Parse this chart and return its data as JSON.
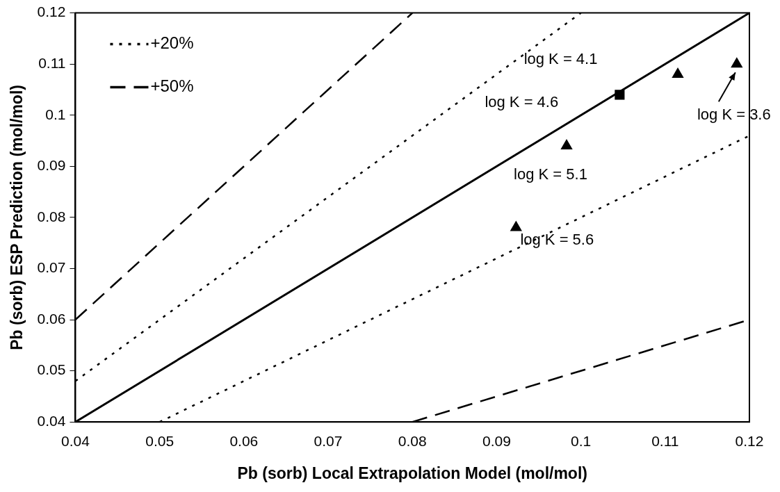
{
  "chart_data": {
    "type": "scatter",
    "xlabel": "Pb (sorb) Local Extrapolation Model (mol/mol)",
    "ylabel": "Pb (sorb) ESP Prediction (mol/mol)",
    "xlim": [
      0.04,
      0.12
    ],
    "ylim": [
      0.04,
      0.12
    ],
    "xticks": [
      0.04,
      0.05,
      0.06,
      0.07,
      0.08,
      0.09,
      0.1,
      0.11,
      0.12
    ],
    "yticks": [
      0.04,
      0.05,
      0.06,
      0.07,
      0.08,
      0.09,
      0.1,
      0.11,
      0.12
    ],
    "grid": false,
    "legend": "top left",
    "series": [
      {
        "type": "line",
        "color": "#000000",
        "line_style": "solid",
        "marker": "none",
        "x": [
          0.04,
          0.12
        ],
        "values": [
          0.04,
          0.12
        ]
      },
      {
        "type": "line",
        "name": "+20%",
        "color": "#000000",
        "line_style": "dotted",
        "marker": "none",
        "x": [
          0.04,
          0.1
        ],
        "values": [
          0.048,
          0.12
        ]
      },
      {
        "type": "line",
        "color": "#000000",
        "line_style": "dotted",
        "marker": "none",
        "x": [
          0.05,
          0.12
        ],
        "values": [
          0.04,
          0.096
        ]
      },
      {
        "type": "line",
        "name": "+50%",
        "color": "#000000",
        "line_style": "dashed",
        "marker": "none",
        "x": [
          0.04,
          0.08
        ],
        "values": [
          0.06,
          0.12
        ]
      },
      {
        "type": "line",
        "color": "#000000",
        "line_style": "dashed",
        "marker": "none",
        "x": [
          0.08,
          0.12
        ],
        "values": [
          0.04,
          0.06
        ]
      },
      {
        "type": "scatter",
        "color": "#000000",
        "marker": "triangle",
        "x": [
          0.0923,
          0.0983,
          0.1115,
          0.1185
        ],
        "values": [
          0.078,
          0.094,
          0.108,
          0.11
        ]
      },
      {
        "type": "scatter",
        "color": "#000000",
        "marker": "square",
        "x": [
          0.1046
        ],
        "values": [
          0.104
        ]
      }
    ],
    "annotations": [
      "log K = 4.1",
      "log K = 4.6",
      {
        "text": "log K = 5.1",
        "x": 0.0983,
        "y": 0.094
      },
      {
        "text": "log K = 5.6",
        "x": 0.0923,
        "y": 0.078
      },
      {
        "text": "log K = 3.6",
        "x": 0.1185,
        "y": 0.11
      }
    ]
  }
}
